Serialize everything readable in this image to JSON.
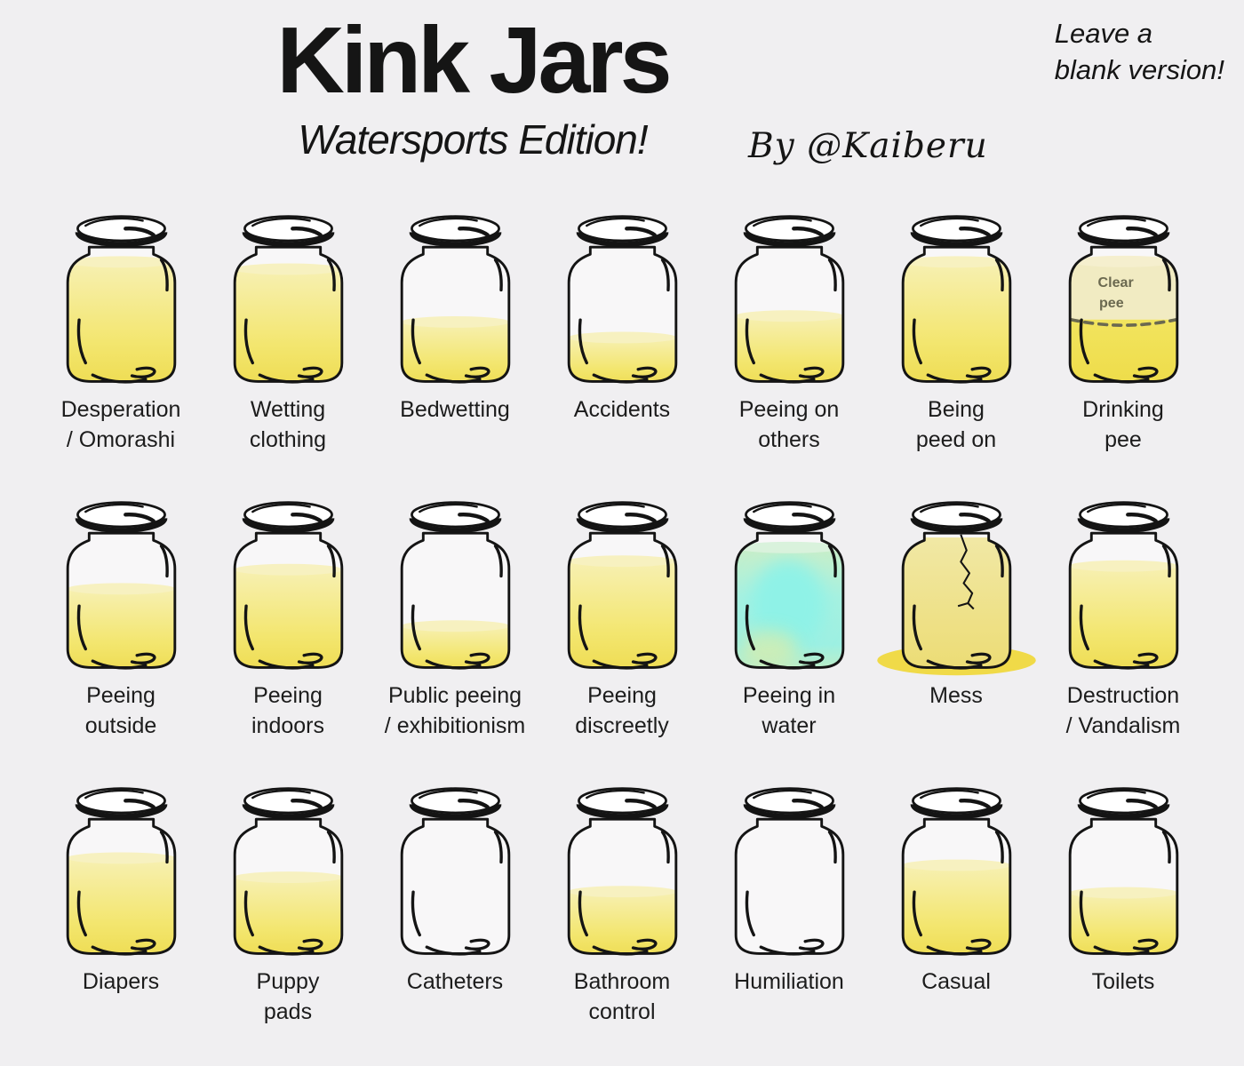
{
  "header": {
    "title": "Kink Jars",
    "subtitle": "Watersports Edition!",
    "byline": "By @Kaiberu",
    "corner_note": "Leave a\nblank version!"
  },
  "palette": {
    "background": "#f0eff1",
    "outline": "#141414",
    "label_text": "#1c1c1c",
    "glass_fill": "#ffffff",
    "pee_surface": "#f7f1c0",
    "water_surface": "#d9f2dc",
    "water_core": "#8ff2e7",
    "water_tinge": "#d9ecac",
    "clear_pee_fill": "#f1ebc2",
    "clear_pee_accent": "#6b6950",
    "mess_puddle": "#f0da48",
    "gradients": {
      "pee": [
        [
          "0%",
          "#f7f0b2"
        ],
        [
          "65%",
          "#f3e66f"
        ],
        [
          "100%",
          "#eedc52"
        ]
      ],
      "mess": [
        [
          "0%",
          "#f1e8a5"
        ],
        [
          "100%",
          "#ecdc74"
        ]
      ],
      "water": [
        [
          "0%",
          "#c9eec8"
        ],
        [
          "40%",
          "#a6f1e0"
        ],
        [
          "78%",
          "#9df0e2"
        ],
        [
          "100%",
          "#bfedc5"
        ]
      ],
      "drinking_bottom": [
        [
          "0%",
          "#f2e45e"
        ],
        [
          "100%",
          "#eedc49"
        ]
      ]
    }
  },
  "chart_data": {
    "type": "pictorial-fill",
    "title": "Kink Jars",
    "subtitle": "Watersports Edition!",
    "unit": "jar fill level, fraction of capacity (0 = empty, 1 = full)",
    "columns": 7,
    "rows": 3,
    "jars": [
      {
        "label": "Desperation / Omorashi",
        "label_lines": [
          "Desperation",
          "/ Omorashi"
        ],
        "variant": "pee",
        "fill": 0.96
      },
      {
        "label": "Wetting clothing",
        "label_lines": [
          "Wetting",
          "clothing"
        ],
        "variant": "pee",
        "fill": 0.9
      },
      {
        "label": "Bedwetting",
        "label_lines": [
          "Bedwetting"
        ],
        "variant": "pee",
        "fill": 0.46
      },
      {
        "label": "Accidents",
        "label_lines": [
          "Accidents"
        ],
        "variant": "pee",
        "fill": 0.33
      },
      {
        "label": "Peeing on others",
        "label_lines": [
          "Peeing on",
          "others"
        ],
        "variant": "pee",
        "fill": 0.51
      },
      {
        "label": "Being peed on",
        "label_lines": [
          "Being",
          "peed on"
        ],
        "variant": "pee",
        "fill": 0.96
      },
      {
        "label": "Drinking pee",
        "label_lines": [
          "Drinking",
          "pee"
        ],
        "variant": "drinking",
        "fill": 1.0,
        "clear_fraction": 0.52,
        "overlay_lines": [
          "Clear",
          "pee"
        ]
      },
      {
        "label": "Peeing outside",
        "label_lines": [
          "Peeing",
          "outside"
        ],
        "variant": "pee",
        "fill": 0.62
      },
      {
        "label": "Peeing indoors",
        "label_lines": [
          "Peeing",
          "indoors"
        ],
        "variant": "pee",
        "fill": 0.78
      },
      {
        "label": "Public peeing / exhibitionism",
        "label_lines": [
          "Public peeing",
          "/ exhibitionism"
        ],
        "variant": "pee",
        "fill": 0.31
      },
      {
        "label": "Peeing discreetly",
        "label_lines": [
          "Peeing",
          "discreetly"
        ],
        "variant": "pee",
        "fill": 0.85
      },
      {
        "label": "Peeing in water",
        "label_lines": [
          "Peeing in",
          "water"
        ],
        "variant": "water",
        "fill": 0.97
      },
      {
        "label": "Mess",
        "label_lines": [
          "Mess"
        ],
        "variant": "mess",
        "fill": 1.0,
        "cracked": true,
        "puddle": true
      },
      {
        "label": "Destruction / Vandalism",
        "label_lines": [
          "Destruction",
          "/ Vandalism"
        ],
        "variant": "pee",
        "fill": 0.81
      },
      {
        "label": "Diapers",
        "label_lines": [
          "Diapers"
        ],
        "variant": "pee",
        "fill": 0.76
      },
      {
        "label": "Puppy pads",
        "label_lines": [
          "Puppy",
          "pads"
        ],
        "variant": "pee",
        "fill": 0.6
      },
      {
        "label": "Catheters",
        "label_lines": [
          "Catheters"
        ],
        "variant": "empty",
        "fill": 0
      },
      {
        "label": "Bathroom control",
        "label_lines": [
          "Bathroom",
          "control"
        ],
        "variant": "pee",
        "fill": 0.48
      },
      {
        "label": "Humiliation",
        "label_lines": [
          "Humiliation"
        ],
        "variant": "empty",
        "fill": 0
      },
      {
        "label": "Casual",
        "label_lines": [
          "Casual"
        ],
        "variant": "pee",
        "fill": 0.7
      },
      {
        "label": "Toilets",
        "label_lines": [
          "Toilets"
        ],
        "variant": "pee",
        "fill": 0.47
      }
    ]
  }
}
